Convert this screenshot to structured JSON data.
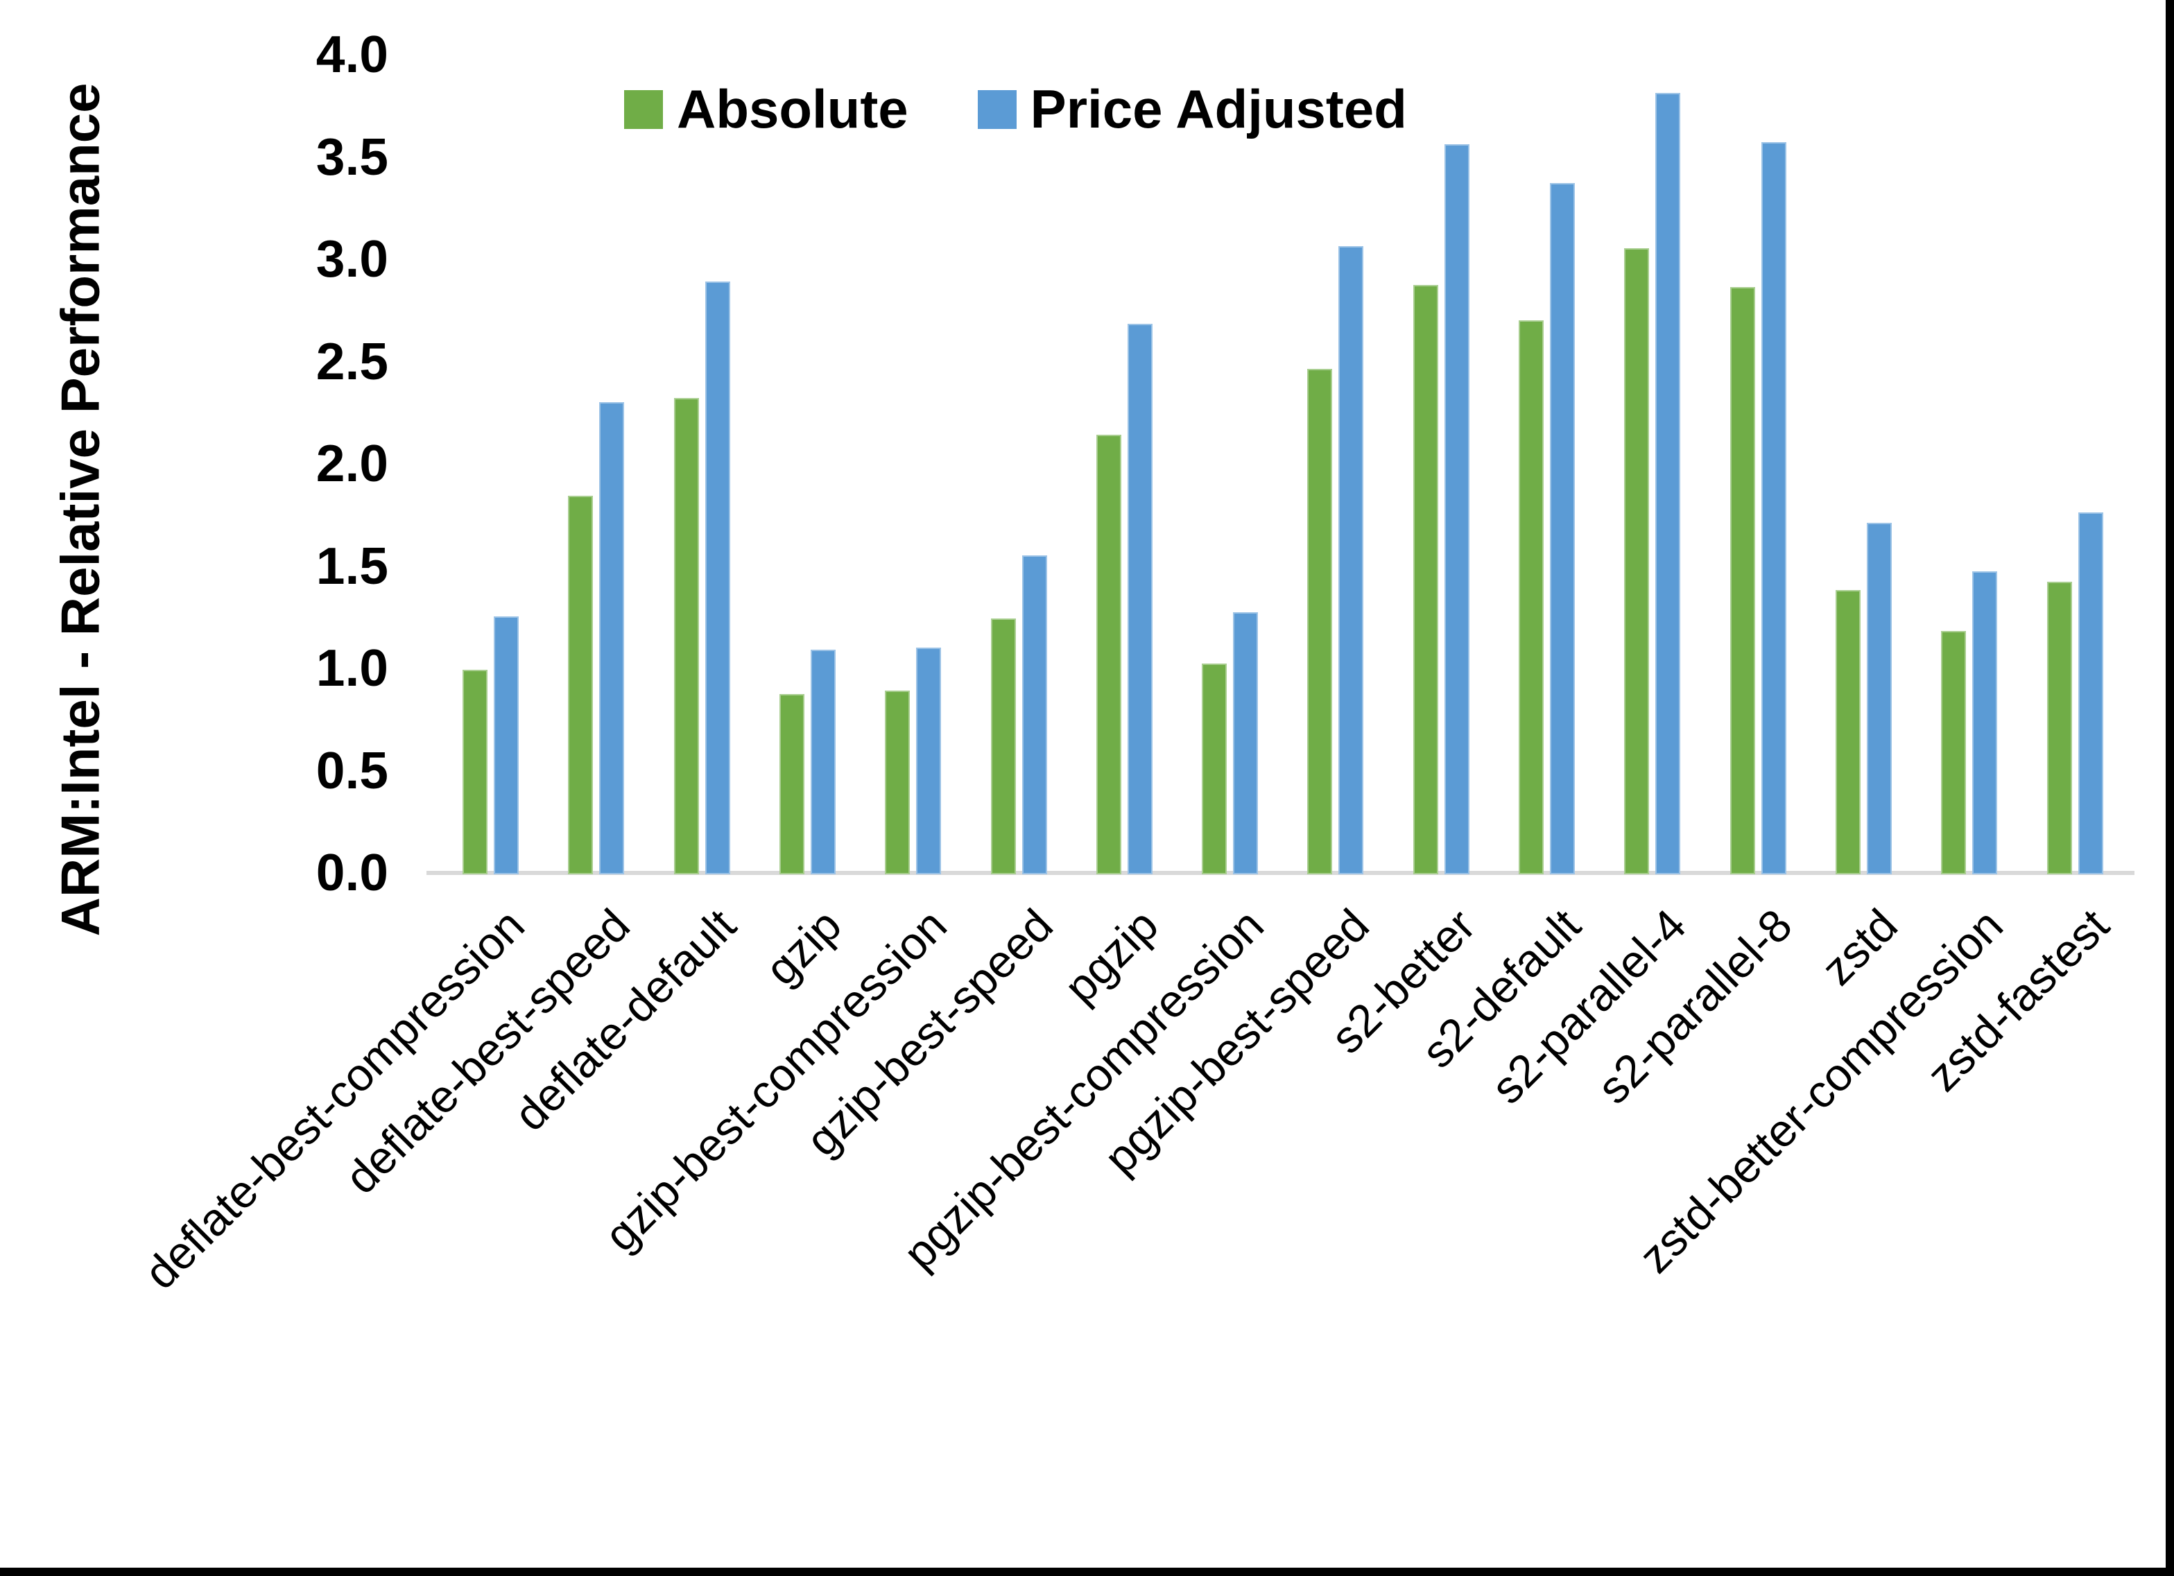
{
  "chart_data": {
    "type": "bar",
    "title": "",
    "xlabel": "",
    "ylabel": "ARM:Intel - Relative Performance",
    "ylim": [
      0,
      4
    ],
    "yticks": [
      "0.0",
      "0.5",
      "1.0",
      "1.5",
      "2.0",
      "2.5",
      "3.0",
      "3.5",
      "4.0"
    ],
    "grid": false,
    "legend_position": "top-center",
    "categories": [
      "deflate-best-compression",
      "deflate-best-speed",
      "deflate-default",
      "gzip",
      "gzip-best-compression",
      "gzip-best-speed",
      "pgzip",
      "pgzip-best-compression",
      "pgzip-best-speed",
      "s2-better",
      "s2-default",
      "s2-parallel-4",
      "s2-parallel-8",
      "zstd",
      "zstd-better-compression",
      "zstd-fastest"
    ],
    "series": [
      {
        "name": "Absolute",
        "color": "#70AD47",
        "values": [
          1.0,
          1.85,
          2.33,
          0.88,
          0.9,
          1.25,
          2.15,
          1.03,
          2.47,
          2.88,
          2.71,
          3.06,
          2.87,
          1.39,
          1.19,
          1.43
        ]
      },
      {
        "name": "Price Adjusted",
        "color": "#5B9BD5",
        "values": [
          1.26,
          2.31,
          2.9,
          1.1,
          1.11,
          1.56,
          2.69,
          1.28,
          3.07,
          3.57,
          3.38,
          3.82,
          3.58,
          1.72,
          1.48,
          1.77
        ]
      }
    ]
  }
}
